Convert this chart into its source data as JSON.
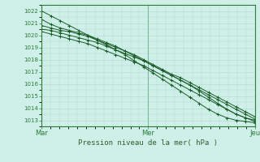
{
  "title": "Pression niveau de la mer( hPa )",
  "bg_color": "#cef0e8",
  "grid_color": "#b0d8cc",
  "line_color": "#1a5c28",
  "spine_color": "#2d7a3a",
  "tick_color": "#2d7a3a",
  "label_color": "#2d6030",
  "xlim": [
    0,
    48
  ],
  "ylim": [
    1012.5,
    1022.5
  ],
  "yticks": [
    1013,
    1014,
    1015,
    1016,
    1017,
    1018,
    1019,
    1020,
    1021,
    1022
  ],
  "xtick_positions": [
    0,
    24,
    48
  ],
  "xtick_labels": [
    "Mar",
    "Mer",
    "Jeu"
  ],
  "series": [
    [
      1022.0,
      1021.6,
      1021.2,
      1020.8,
      1020.4,
      1020.0,
      1019.6,
      1019.2,
      1018.8,
      1018.4,
      1017.9,
      1017.4,
      1016.9,
      1016.4,
      1015.9,
      1015.4,
      1014.9,
      1014.4,
      1013.9,
      1013.5,
      1013.2,
      1013.0,
      1012.9,
      1012.8
    ],
    [
      1021.3,
      1020.9,
      1020.6,
      1020.4,
      1020.2,
      1020.0,
      1019.7,
      1019.4,
      1019.1,
      1018.7,
      1018.3,
      1017.9,
      1017.5,
      1017.1,
      1016.7,
      1016.3,
      1015.9,
      1015.4,
      1014.9,
      1014.4,
      1013.9,
      1013.5,
      1013.2,
      1013.0
    ],
    [
      1020.8,
      1020.6,
      1020.4,
      1020.3,
      1020.1,
      1019.9,
      1019.6,
      1019.3,
      1019.0,
      1018.7,
      1018.4,
      1018.0,
      1017.6,
      1017.2,
      1016.8,
      1016.5,
      1016.1,
      1015.7,
      1015.3,
      1014.9,
      1014.5,
      1014.1,
      1013.7,
      1013.3
    ],
    [
      1020.5,
      1020.4,
      1020.2,
      1020.0,
      1019.8,
      1019.6,
      1019.4,
      1019.1,
      1018.8,
      1018.5,
      1018.2,
      1017.9,
      1017.5,
      1017.1,
      1016.7,
      1016.3,
      1015.9,
      1015.5,
      1015.1,
      1014.7,
      1014.3,
      1013.9,
      1013.5,
      1013.1
    ],
    [
      1020.3,
      1020.1,
      1019.9,
      1019.7,
      1019.5,
      1019.3,
      1019.0,
      1018.7,
      1018.4,
      1018.1,
      1017.8,
      1017.5,
      1017.1,
      1016.7,
      1016.3,
      1015.9,
      1015.5,
      1015.1,
      1014.7,
      1014.3,
      1013.9,
      1013.5,
      1013.2,
      1012.9
    ]
  ]
}
